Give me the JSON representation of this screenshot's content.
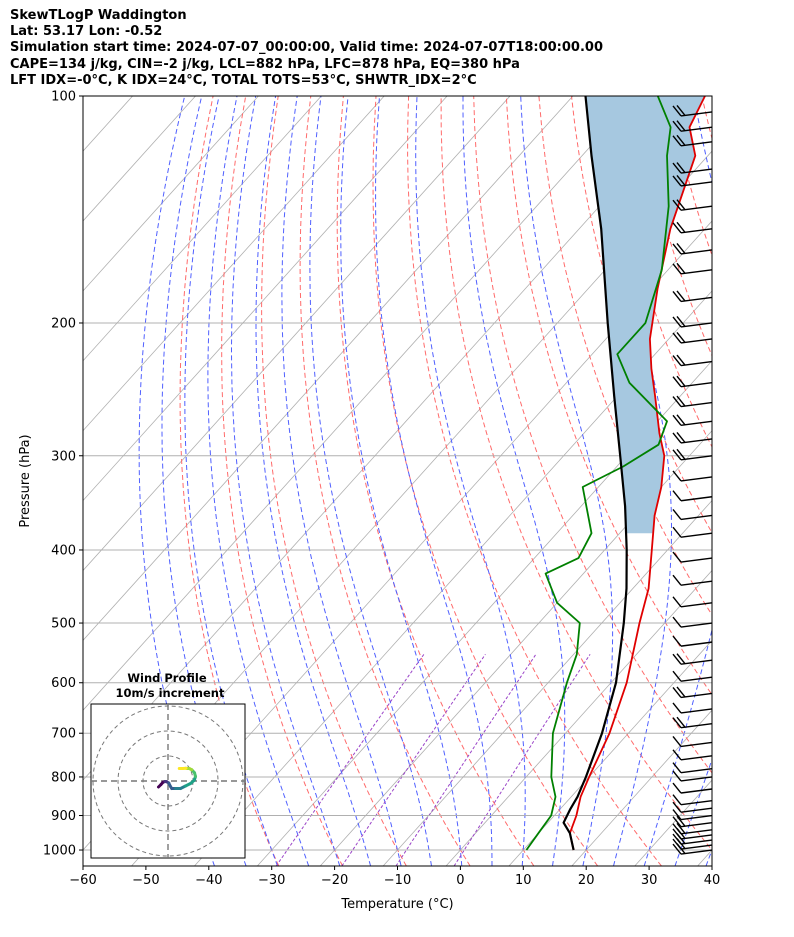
{
  "header": {
    "lines": [
      "SkewTLogP Waddington",
      "Lat: 53.17   Lon: -0.52",
      "Simulation start time: 2024-07-07_00:00:00, Valid time: 2024-07-07T18:00:00.00",
      "CAPE=134 j/kg, CIN=-2 j/kg, LCL=882 hPa, LFC=878 hPa, EQ=380 hPa",
      "LFT IDX=-0°C, K IDX=24°C, TOTAL TOTS=53°C, SHWTR_IDX=2°C"
    ]
  },
  "chart_data": {
    "type": "line",
    "title": "",
    "xlabel": "Temperature (°C)",
    "ylabel": "Pressure (hPa)",
    "xlim": [
      -60,
      40
    ],
    "ylim": [
      1050,
      100
    ],
    "y_scale": "log",
    "skew": "temperature isotherms skewed to the right with height",
    "x_ticks": [
      -60,
      -50,
      -40,
      -30,
      -20,
      -10,
      0,
      10,
      20,
      30,
      40
    ],
    "x_tick_labels": [
      "−60",
      "−50",
      "−40",
      "−30",
      "−20",
      "−10",
      "0",
      "10",
      "20",
      "30",
      "40"
    ],
    "y_ticks": [
      1000,
      900,
      800,
      700,
      600,
      500,
      400,
      300,
      200,
      100
    ],
    "grid": true,
    "background_lines": {
      "isotherms_color": "#b0b0b0",
      "dry_adiabats_color": "#ff6b6b",
      "moist_adiabats_color": "#5060ff",
      "mixing_ratio_color": "#9a44c8"
    },
    "series": [
      {
        "name": "Temperature",
        "color": "#e00000",
        "points": [
          [
            1000,
            18.0
          ],
          [
            950,
            15.0
          ],
          [
            900,
            13.5
          ],
          [
            850,
            11.5
          ],
          [
            800,
            10.0
          ],
          [
            700,
            7.0
          ],
          [
            600,
            2.5
          ],
          [
            500,
            -4.0
          ],
          [
            450,
            -7.5
          ],
          [
            400,
            -12.5
          ],
          [
            360,
            -17.0
          ],
          [
            330,
            -20.0
          ],
          [
            300,
            -24.0
          ],
          [
            280,
            -28.0
          ],
          [
            250,
            -34.0
          ],
          [
            230,
            -38.5
          ],
          [
            210,
            -43.0
          ],
          [
            180,
            -49.0
          ],
          [
            150,
            -55.5
          ],
          [
            120,
            -62.0
          ],
          [
            110,
            -67.0
          ],
          [
            100,
            -69.0
          ]
        ]
      },
      {
        "name": "Dewpoint",
        "color": "#008000",
        "points": [
          [
            1000,
            10.5
          ],
          [
            950,
            10.0
          ],
          [
            900,
            9.5
          ],
          [
            850,
            7.5
          ],
          [
            800,
            4.0
          ],
          [
            700,
            -2.0
          ],
          [
            600,
            -7.0
          ],
          [
            550,
            -9.5
          ],
          [
            500,
            -13.5
          ],
          [
            470,
            -20.0
          ],
          [
            430,
            -26.0
          ],
          [
            410,
            -23.0
          ],
          [
            380,
            -24.5
          ],
          [
            330,
            -32.5
          ],
          [
            310,
            -29.0
          ],
          [
            290,
            -26.5
          ],
          [
            270,
            -28.5
          ],
          [
            240,
            -40.0
          ],
          [
            220,
            -46.0
          ],
          [
            200,
            -46.0
          ],
          [
            170,
            -51.0
          ],
          [
            140,
            -59.0
          ],
          [
            120,
            -66.5
          ],
          [
            110,
            -70.0
          ],
          [
            100,
            -76.5
          ]
        ]
      },
      {
        "name": "Parcel",
        "color": "#000000",
        "points": [
          [
            1000,
            18.0
          ],
          [
            950,
            15.0
          ],
          [
            920,
            12.5
          ],
          [
            882,
            11.6
          ],
          [
            850,
            11.0
          ],
          [
            800,
            9.5
          ],
          [
            700,
            5.8
          ],
          [
            600,
            0.8
          ],
          [
            500,
            -6.5
          ],
          [
            450,
            -11.0
          ],
          [
            400,
            -16.5
          ],
          [
            350,
            -23.0
          ],
          [
            300,
            -31.0
          ],
          [
            250,
            -40.5
          ],
          [
            200,
            -52.0
          ],
          [
            150,
            -66.5
          ],
          [
            120,
            -78.5
          ],
          [
            100,
            -88.0
          ]
        ]
      }
    ],
    "cape_fill": {
      "color": "#a6c8e0",
      "from_hpa": 380,
      "to_hpa": 100
    },
    "wind_barbs": {
      "x_position_label": "right edge",
      "levels_hpa": [
        1000,
        985,
        970,
        955,
        940,
        920,
        900,
        880,
        860,
        830,
        800,
        780,
        750,
        720,
        680,
        650,
        620,
        590,
        560,
        530,
        500,
        470,
        440,
        410,
        380,
        360,
        340,
        320,
        300,
        285,
        270,
        255,
        240,
        225,
        210,
        200,
        185,
        170,
        160,
        150,
        140,
        130,
        125,
        115,
        110,
        105
      ],
      "barb_counts": [
        2,
        2,
        2,
        2,
        2,
        2,
        1,
        1,
        1,
        1,
        1,
        1,
        1,
        1,
        2,
        1,
        2,
        1,
        2,
        1,
        1,
        1,
        1,
        1,
        1,
        1,
        1,
        1,
        2,
        2,
        2,
        2,
        2,
        2,
        2,
        2,
        2,
        2,
        2,
        2,
        2,
        2,
        2,
        2,
        2,
        2
      ]
    },
    "inset": {
      "title_line1": "Wind Profile",
      "title_line2": "10m/s increment",
      "rings_ms": [
        10,
        20,
        30
      ],
      "hodograph": [
        [
          -3.8,
          -2.4
        ],
        [
          -2.8,
          -1.4
        ],
        [
          -2.0,
          -0.5
        ],
        [
          -1.2,
          -0.2
        ],
        [
          -0.5,
          -0.3
        ],
        [
          0.3,
          -0.8
        ],
        [
          1.0,
          -2.2
        ],
        [
          1.5,
          -3.0
        ],
        [
          3.0,
          -3.0
        ],
        [
          5.0,
          -3.0
        ],
        [
          7.0,
          -2.0
        ],
        [
          9.0,
          -1.0
        ],
        [
          10.5,
          0.3
        ],
        [
          11.0,
          1.8
        ],
        [
          10.6,
          3.3
        ],
        [
          9.5,
          4.5
        ],
        [
          8.5,
          5.0
        ],
        [
          7.5,
          5.0
        ],
        [
          7.2,
          5.1
        ],
        [
          6.0,
          5.0
        ],
        [
          4.5,
          5.0
        ]
      ]
    }
  }
}
